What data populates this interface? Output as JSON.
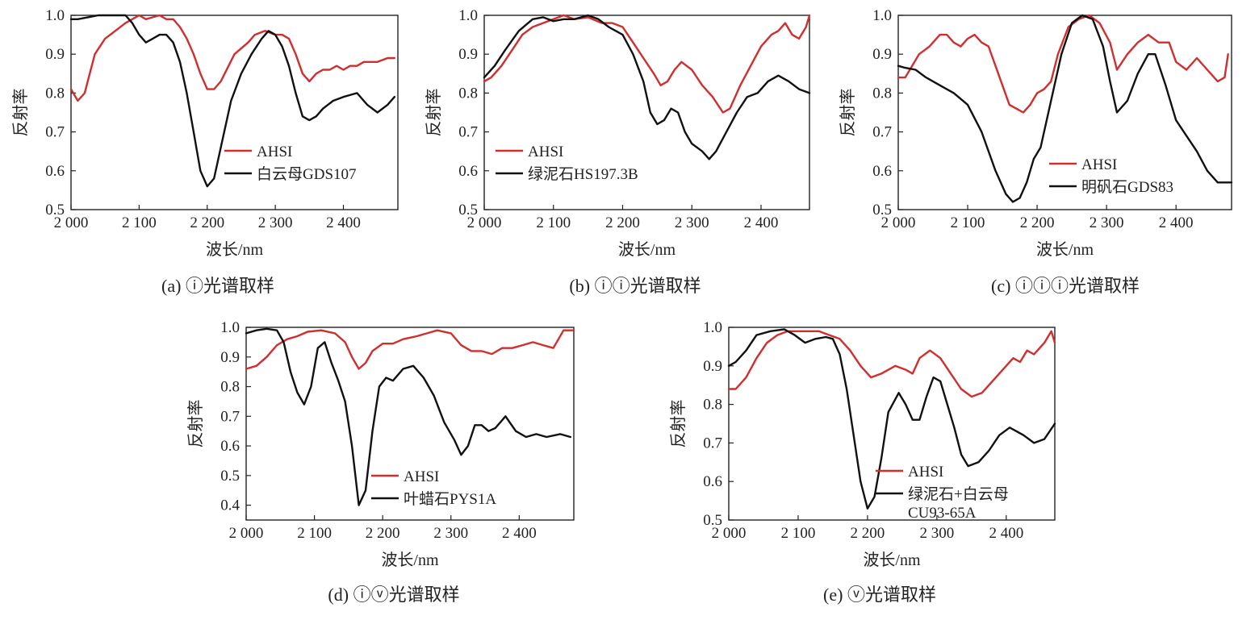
{
  "chart_data": [
    {
      "type": "line",
      "caption": "(a) ⓘ光谱取样",
      "xlabel": "波长/nm",
      "ylabel": "反射率",
      "xlim": [
        2000,
        2480
      ],
      "ylim": [
        0.5,
        1.0
      ],
      "xticks": [
        2000,
        2100,
        2200,
        2300,
        2400
      ],
      "xtick_labels": [
        "2 000",
        "2 100",
        "2 200",
        "2 300",
        "2 400"
      ],
      "yticks": [
        0.5,
        0.6,
        0.7,
        0.8,
        0.9,
        1.0
      ],
      "ytick_labels": [
        "0.5",
        "0.6",
        "0.7",
        "0.8",
        "0.9",
        "1.0"
      ],
      "legend_position": "bottom-center",
      "series": [
        {
          "name": "AHSI",
          "color": "#d12e2e",
          "x": [
            2000,
            2010,
            2020,
            2035,
            2050,
            2065,
            2080,
            2090,
            2100,
            2110,
            2120,
            2130,
            2140,
            2150,
            2160,
            2170,
            2180,
            2190,
            2200,
            2210,
            2220,
            2240,
            2260,
            2270,
            2285,
            2300,
            2310,
            2320,
            2330,
            2340,
            2350,
            2360,
            2370,
            2380,
            2390,
            2400,
            2410,
            2420,
            2430,
            2450,
            2465,
            2475
          ],
          "y": [
            0.81,
            0.78,
            0.8,
            0.9,
            0.94,
            0.96,
            0.98,
            0.99,
            1.0,
            0.99,
            0.995,
            1.0,
            0.99,
            0.99,
            0.97,
            0.94,
            0.9,
            0.85,
            0.81,
            0.81,
            0.83,
            0.9,
            0.93,
            0.95,
            0.96,
            0.95,
            0.95,
            0.94,
            0.9,
            0.85,
            0.83,
            0.85,
            0.86,
            0.86,
            0.87,
            0.86,
            0.87,
            0.87,
            0.88,
            0.88,
            0.89,
            0.89
          ]
        },
        {
          "name": "白云母GDS107",
          "color": "#111111",
          "x": [
            2000,
            2010,
            2025,
            2040,
            2060,
            2080,
            2090,
            2100,
            2110,
            2120,
            2130,
            2140,
            2150,
            2160,
            2170,
            2180,
            2190,
            2200,
            2210,
            2220,
            2235,
            2250,
            2265,
            2280,
            2290,
            2300,
            2310,
            2320,
            2330,
            2340,
            2350,
            2360,
            2370,
            2385,
            2400,
            2420,
            2435,
            2450,
            2465,
            2475
          ],
          "y": [
            0.99,
            0.99,
            0.995,
            1.0,
            1.0,
            1.0,
            0.98,
            0.95,
            0.93,
            0.94,
            0.95,
            0.95,
            0.93,
            0.88,
            0.8,
            0.7,
            0.6,
            0.56,
            0.58,
            0.66,
            0.78,
            0.85,
            0.9,
            0.94,
            0.96,
            0.95,
            0.92,
            0.87,
            0.8,
            0.74,
            0.73,
            0.74,
            0.76,
            0.78,
            0.79,
            0.8,
            0.77,
            0.75,
            0.77,
            0.79
          ]
        }
      ]
    },
    {
      "type": "line",
      "caption": "(b) ⓘⓘ光谱取样",
      "xlabel": "波长/nm",
      "ylabel": "反射率",
      "xlim": [
        2000,
        2470
      ],
      "ylim": [
        0.5,
        1.0
      ],
      "xticks": [
        2000,
        2100,
        2200,
        2300,
        2400
      ],
      "xtick_labels": [
        "2 000",
        "2 100",
        "2 200",
        "2 300",
        "2 400"
      ],
      "yticks": [
        0.5,
        0.6,
        0.7,
        0.8,
        0.9,
        1.0
      ],
      "ytick_labels": [
        "0.5",
        "0.6",
        "0.7",
        "0.8",
        "0.9",
        "1.0"
      ],
      "legend_position": "bottom-left",
      "series": [
        {
          "name": "AHSI",
          "color": "#d12e2e",
          "x": [
            2000,
            2010,
            2025,
            2040,
            2055,
            2070,
            2085,
            2100,
            2115,
            2130,
            2150,
            2170,
            2185,
            2200,
            2215,
            2230,
            2245,
            2255,
            2265,
            2275,
            2285,
            2300,
            2315,
            2330,
            2345,
            2355,
            2370,
            2385,
            2400,
            2415,
            2425,
            2435,
            2445,
            2455,
            2465,
            2470
          ],
          "y": [
            0.83,
            0.84,
            0.87,
            0.91,
            0.95,
            0.97,
            0.98,
            0.99,
            1.0,
            0.99,
            0.995,
            0.98,
            0.98,
            0.97,
            0.93,
            0.89,
            0.85,
            0.82,
            0.83,
            0.86,
            0.88,
            0.86,
            0.82,
            0.79,
            0.75,
            0.76,
            0.82,
            0.87,
            0.92,
            0.95,
            0.96,
            0.98,
            0.95,
            0.94,
            0.97,
            1.0
          ]
        },
        {
          "name": "绿泥石HS197.3B",
          "color": "#111111",
          "x": [
            2000,
            2015,
            2030,
            2050,
            2070,
            2085,
            2100,
            2115,
            2130,
            2150,
            2165,
            2180,
            2200,
            2215,
            2230,
            2240,
            2250,
            2260,
            2270,
            2280,
            2290,
            2300,
            2315,
            2325,
            2335,
            2350,
            2365,
            2380,
            2395,
            2410,
            2425,
            2440,
            2455,
            2470
          ],
          "y": [
            0.84,
            0.87,
            0.91,
            0.96,
            0.99,
            0.995,
            0.985,
            0.99,
            0.99,
            1.0,
            0.99,
            0.97,
            0.95,
            0.9,
            0.83,
            0.75,
            0.72,
            0.73,
            0.76,
            0.75,
            0.7,
            0.67,
            0.65,
            0.63,
            0.65,
            0.7,
            0.75,
            0.79,
            0.8,
            0.83,
            0.845,
            0.83,
            0.81,
            0.8
          ]
        }
      ]
    },
    {
      "type": "line",
      "caption": "(c) ⓘⓘⓘ光谱取样",
      "xlabel": "波长/nm",
      "ylabel": "反射率",
      "xlim": [
        2000,
        2480
      ],
      "ylim": [
        0.5,
        1.0
      ],
      "xticks": [
        2000,
        2100,
        2200,
        2300,
        2400
      ],
      "xtick_labels": [
        "2 000",
        "2 100",
        "2 200",
        "2 300",
        "2 400"
      ],
      "yticks": [
        0.5,
        0.6,
        0.7,
        0.8,
        0.9,
        1.0
      ],
      "ytick_labels": [
        "0.5",
        "0.6",
        "0.7",
        "0.8",
        "0.9",
        "1.0"
      ],
      "legend_position": "bottom-right",
      "series": [
        {
          "name": "AHSI",
          "color": "#d12e2e",
          "x": [
            2000,
            2010,
            2020,
            2030,
            2045,
            2060,
            2070,
            2080,
            2090,
            2100,
            2110,
            2120,
            2130,
            2140,
            2150,
            2160,
            2170,
            2180,
            2190,
            2200,
            2210,
            2220,
            2230,
            2245,
            2260,
            2275,
            2290,
            2305,
            2315,
            2330,
            2345,
            2360,
            2375,
            2390,
            2400,
            2415,
            2430,
            2445,
            2460,
            2470,
            2475
          ],
          "y": [
            0.84,
            0.84,
            0.87,
            0.9,
            0.92,
            0.95,
            0.95,
            0.93,
            0.92,
            0.94,
            0.95,
            0.93,
            0.92,
            0.87,
            0.82,
            0.77,
            0.76,
            0.75,
            0.77,
            0.8,
            0.81,
            0.83,
            0.9,
            0.97,
            0.99,
            1.0,
            0.98,
            0.93,
            0.86,
            0.9,
            0.93,
            0.95,
            0.93,
            0.93,
            0.88,
            0.86,
            0.89,
            0.86,
            0.83,
            0.84,
            0.9
          ]
        },
        {
          "name": "明矾石GDS83",
          "color": "#111111",
          "x": [
            2000,
            2010,
            2025,
            2040,
            2060,
            2080,
            2100,
            2120,
            2140,
            2155,
            2165,
            2175,
            2185,
            2195,
            2205,
            2220,
            2235,
            2250,
            2265,
            2280,
            2295,
            2305,
            2315,
            2330,
            2345,
            2360,
            2370,
            2385,
            2400,
            2415,
            2430,
            2445,
            2460,
            2480
          ],
          "y": [
            0.87,
            0.865,
            0.86,
            0.84,
            0.82,
            0.8,
            0.77,
            0.7,
            0.6,
            0.54,
            0.52,
            0.53,
            0.57,
            0.63,
            0.66,
            0.78,
            0.9,
            0.98,
            1.0,
            0.99,
            0.92,
            0.83,
            0.75,
            0.78,
            0.85,
            0.9,
            0.9,
            0.82,
            0.73,
            0.69,
            0.65,
            0.6,
            0.57,
            0.57
          ]
        }
      ]
    },
    {
      "type": "line",
      "caption": "(d) ⓘⓥ光谱取样",
      "xlabel": "波长/nm",
      "ylabel": "反射率",
      "xlim": [
        2000,
        2480
      ],
      "ylim": [
        0.35,
        1.0
      ],
      "xticks": [
        2000,
        2100,
        2200,
        2300,
        2400
      ],
      "xtick_labels": [
        "2 000",
        "2 100",
        "2 200",
        "2 300",
        "2 400"
      ],
      "yticks": [
        0.4,
        0.5,
        0.6,
        0.7,
        0.8,
        0.9,
        1.0
      ],
      "ytick_labels": [
        "0.4",
        "0.5",
        "0.6",
        "0.7",
        "0.8",
        "0.9",
        "1.0"
      ],
      "legend_position": "bottom-center",
      "series": [
        {
          "name": "AHSI",
          "color": "#d12e2e",
          "x": [
            2000,
            2015,
            2030,
            2045,
            2060,
            2075,
            2090,
            2110,
            2130,
            2145,
            2155,
            2165,
            2175,
            2185,
            2200,
            2215,
            2230,
            2250,
            2265,
            2280,
            2300,
            2315,
            2330,
            2345,
            2360,
            2375,
            2390,
            2405,
            2420,
            2435,
            2450,
            2465,
            2480
          ],
          "y": [
            0.86,
            0.87,
            0.9,
            0.94,
            0.96,
            0.97,
            0.985,
            0.99,
            0.98,
            0.95,
            0.9,
            0.86,
            0.88,
            0.92,
            0.945,
            0.945,
            0.96,
            0.97,
            0.98,
            0.99,
            0.98,
            0.94,
            0.92,
            0.92,
            0.91,
            0.93,
            0.93,
            0.94,
            0.95,
            0.94,
            0.93,
            0.99,
            0.99
          ]
        },
        {
          "name": "叶蜡石PYS1A",
          "color": "#111111",
          "x": [
            2000,
            2015,
            2030,
            2045,
            2055,
            2065,
            2075,
            2085,
            2095,
            2105,
            2115,
            2125,
            2135,
            2145,
            2155,
            2165,
            2175,
            2185,
            2195,
            2205,
            2215,
            2230,
            2245,
            2260,
            2275,
            2290,
            2305,
            2315,
            2325,
            2335,
            2345,
            2355,
            2365,
            2380,
            2395,
            2410,
            2425,
            2440,
            2460,
            2475
          ],
          "y": [
            0.98,
            0.99,
            0.995,
            0.99,
            0.95,
            0.85,
            0.78,
            0.74,
            0.8,
            0.93,
            0.95,
            0.88,
            0.82,
            0.75,
            0.6,
            0.4,
            0.45,
            0.65,
            0.8,
            0.83,
            0.82,
            0.86,
            0.87,
            0.83,
            0.77,
            0.68,
            0.62,
            0.57,
            0.6,
            0.67,
            0.67,
            0.65,
            0.66,
            0.7,
            0.65,
            0.63,
            0.64,
            0.63,
            0.64,
            0.63
          ]
        }
      ]
    },
    {
      "type": "line",
      "caption": "(e) ⓥ光谱取样",
      "xlabel": "波长/nm",
      "ylabel": "反射率",
      "xlim": [
        2000,
        2470
      ],
      "ylim": [
        0.5,
        1.0
      ],
      "xticks": [
        2000,
        2100,
        2200,
        2300,
        2400
      ],
      "xtick_labels": [
        "2 000",
        "2 100",
        "2 200",
        "2 300",
        "2 400"
      ],
      "yticks": [
        0.5,
        0.6,
        0.7,
        0.8,
        0.9,
        1.0
      ],
      "ytick_labels": [
        "0.5",
        "0.6",
        "0.7",
        "0.8",
        "0.9",
        "1.0"
      ],
      "legend_position": "bottom-center",
      "series": [
        {
          "name": "AHSI",
          "color": "#d12e2e",
          "x": [
            2000,
            2010,
            2025,
            2040,
            2055,
            2070,
            2085,
            2100,
            2115,
            2130,
            2145,
            2160,
            2175,
            2190,
            2205,
            2220,
            2240,
            2255,
            2265,
            2275,
            2290,
            2305,
            2320,
            2335,
            2350,
            2365,
            2380,
            2395,
            2410,
            2420,
            2430,
            2440,
            2455,
            2465,
            2470
          ],
          "y": [
            0.84,
            0.84,
            0.87,
            0.92,
            0.96,
            0.98,
            0.99,
            0.99,
            0.99,
            0.99,
            0.98,
            0.97,
            0.94,
            0.9,
            0.87,
            0.88,
            0.9,
            0.89,
            0.88,
            0.92,
            0.94,
            0.92,
            0.88,
            0.84,
            0.82,
            0.83,
            0.86,
            0.89,
            0.92,
            0.91,
            0.94,
            0.93,
            0.96,
            0.99,
            0.96
          ]
        },
        {
          "name": "绿泥石+白云母CU93-65A",
          "color": "#111111",
          "x": [
            2000,
            2010,
            2025,
            2040,
            2060,
            2080,
            2095,
            2110,
            2125,
            2140,
            2150,
            2160,
            2170,
            2180,
            2190,
            2200,
            2210,
            2220,
            2230,
            2245,
            2255,
            2265,
            2275,
            2285,
            2295,
            2305,
            2315,
            2325,
            2335,
            2345,
            2360,
            2375,
            2390,
            2405,
            2425,
            2440,
            2455,
            2470
          ],
          "y": [
            0.9,
            0.91,
            0.94,
            0.98,
            0.99,
            0.995,
            0.98,
            0.96,
            0.97,
            0.975,
            0.97,
            0.93,
            0.84,
            0.72,
            0.6,
            0.53,
            0.56,
            0.66,
            0.78,
            0.83,
            0.8,
            0.76,
            0.76,
            0.82,
            0.87,
            0.86,
            0.8,
            0.74,
            0.67,
            0.64,
            0.65,
            0.68,
            0.72,
            0.74,
            0.72,
            0.7,
            0.71,
            0.75
          ]
        }
      ]
    }
  ]
}
